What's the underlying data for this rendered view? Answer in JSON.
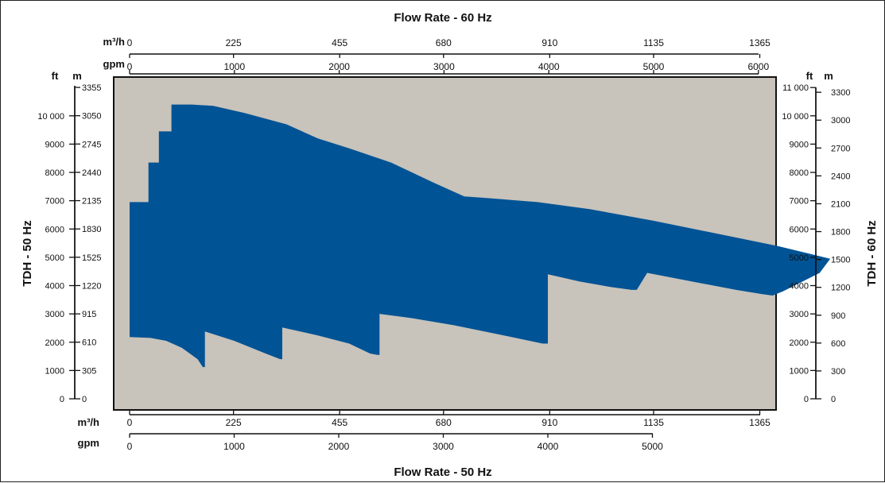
{
  "chart_data": {
    "type": "area",
    "title_top": "Flow Rate - 60 Hz",
    "title_bottom": "Flow Rate - 50 Hz",
    "left_title": "TDH - 50 Hz",
    "right_title": "TDH - 60 Hz",
    "colors": {
      "plot_bg": "#c8c3bb",
      "region": "#005395",
      "axis": "#111111"
    },
    "grid": false,
    "top_axis": {
      "m3h": {
        "unit": "m³/h",
        "ticks": [
          "0",
          "225",
          "455",
          "680",
          "910",
          "1135",
          "1365"
        ],
        "values": [
          0,
          225,
          455,
          680,
          910,
          1135,
          1365
        ]
      },
      "gpm": {
        "unit": "gpm",
        "ticks": [
          "0",
          "1000",
          "2000",
          "3000",
          "4000",
          "5000",
          "6000"
        ],
        "values": [
          0,
          1000,
          2000,
          3000,
          4000,
          5000,
          6000
        ]
      }
    },
    "bottom_axis": {
      "m3h": {
        "unit": "m³/h",
        "ticks": [
          "0",
          "225",
          "455",
          "680",
          "910",
          "1135",
          "1365"
        ],
        "values": [
          0,
          225,
          455,
          680,
          910,
          1135,
          1365
        ]
      },
      "gpm": {
        "unit": "gpm",
        "ticks": [
          "0",
          "1000",
          "2000",
          "3000",
          "4000",
          "5000"
        ],
        "values": [
          0,
          1000,
          2000,
          3000,
          4000,
          5000
        ]
      }
    },
    "left_axis": {
      "ft": {
        "unit": "ft",
        "ticks": [
          "0",
          "1000",
          "2000",
          "3000",
          "4000",
          "5000",
          "6000",
          "7000",
          "8000",
          "9000",
          "10 000"
        ],
        "values": [
          0,
          1000,
          2000,
          3000,
          4000,
          5000,
          6000,
          7000,
          8000,
          9000,
          10000
        ],
        "range": [
          0,
          11000
        ]
      },
      "m": {
        "unit": "m",
        "ticks": [
          "0",
          "305",
          "610",
          "915",
          "1220",
          "1525",
          "1830",
          "2135",
          "2440",
          "2745",
          "3050",
          "3355"
        ],
        "values": [
          0,
          305,
          610,
          915,
          1220,
          1525,
          1830,
          2135,
          2440,
          2745,
          3050,
          3355
        ]
      }
    },
    "right_axis": {
      "ft": {
        "unit": "ft",
        "ticks": [
          "0",
          "1000",
          "2000",
          "3000",
          "4000",
          "5000",
          "6000",
          "7000",
          "8000",
          "9000",
          "10 000",
          "11 000"
        ],
        "values": [
          0,
          1000,
          2000,
          3000,
          4000,
          5000,
          6000,
          7000,
          8000,
          9000,
          10000,
          11000
        ],
        "range": [
          0,
          11000
        ]
      },
      "m": {
        "unit": "m",
        "ticks": [
          "0",
          "300",
          "600",
          "900",
          "1200",
          "1500",
          "1800",
          "2100",
          "2400",
          "2700",
          "3000",
          "3300"
        ],
        "values": [
          0,
          300,
          600,
          900,
          1200,
          1500,
          1800,
          2100,
          2400,
          2700,
          3000,
          3300
        ]
      }
    },
    "coverage_region_gpm_ft": [
      [
        0,
        2180
      ],
      [
        200,
        2150
      ],
      [
        350,
        2050
      ],
      [
        500,
        1800
      ],
      [
        650,
        1400
      ],
      [
        700,
        1120
      ],
      [
        720,
        1120
      ],
      [
        720,
        2380
      ],
      [
        1000,
        2050
      ],
      [
        1300,
        1600
      ],
      [
        1440,
        1400
      ],
      [
        1460,
        1400
      ],
      [
        1460,
        2520
      ],
      [
        1800,
        2240
      ],
      [
        2100,
        1950
      ],
      [
        2300,
        1600
      ],
      [
        2370,
        1550
      ],
      [
        2390,
        1550
      ],
      [
        2390,
        3000
      ],
      [
        2700,
        2850
      ],
      [
        3100,
        2600
      ],
      [
        3500,
        2300
      ],
      [
        3950,
        1950
      ],
      [
        4000,
        1950
      ],
      [
        4000,
        4400
      ],
      [
        4300,
        4150
      ],
      [
        4600,
        3950
      ],
      [
        4800,
        3850
      ],
      [
        4850,
        3850
      ],
      [
        4950,
        4450
      ],
      [
        5300,
        4200
      ],
      [
        5800,
        3850
      ],
      [
        6050,
        3700
      ],
      [
        6150,
        3650
      ],
      [
        6250,
        3800
      ],
      [
        6600,
        4450
      ],
      [
        6700,
        4950
      ],
      [
        6200,
        5400
      ],
      [
        5600,
        5850
      ],
      [
        5000,
        6300
      ],
      [
        4400,
        6700
      ],
      [
        3900,
        6950
      ],
      [
        3400,
        7100
      ],
      [
        3200,
        7150
      ],
      [
        2900,
        7650
      ],
      [
        2500,
        8350
      ],
      [
        2100,
        8850
      ],
      [
        1800,
        9200
      ],
      [
        1500,
        9700
      ],
      [
        1100,
        10100
      ],
      [
        800,
        10350
      ],
      [
        600,
        10400
      ],
      [
        400,
        10400
      ],
      [
        400,
        9450
      ],
      [
        280,
        9450
      ],
      [
        280,
        8350
      ],
      [
        180,
        8350
      ],
      [
        180,
        6950
      ],
      [
        80,
        6950
      ],
      [
        0,
        6950
      ]
    ]
  }
}
